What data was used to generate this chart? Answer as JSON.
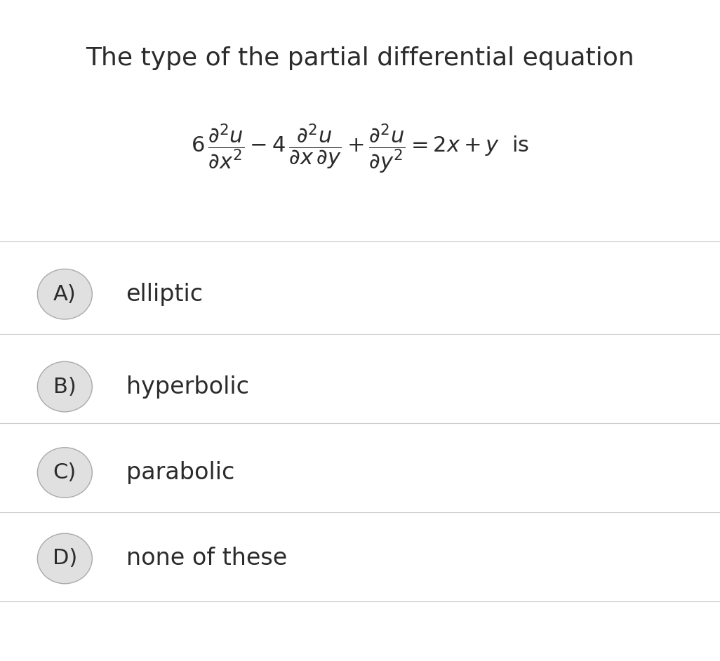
{
  "title": "The type of the partial differential equation",
  "options": [
    "A)",
    "B)",
    "C)",
    "D)"
  ],
  "option_labels": [
    "elliptic",
    "hyperbolic",
    "parabolic",
    "none of these"
  ],
  "bg_color": "#ffffff",
  "text_color": "#2b2b2b",
  "circle_color": "#e0e0e0",
  "circle_border": "#aaaaaa",
  "divider_color": "#cccccc",
  "title_fontsize": 26,
  "equation_fontsize": 22,
  "option_fontsize": 24,
  "figsize": [
    10.26,
    9.42
  ],
  "dpi": 100
}
